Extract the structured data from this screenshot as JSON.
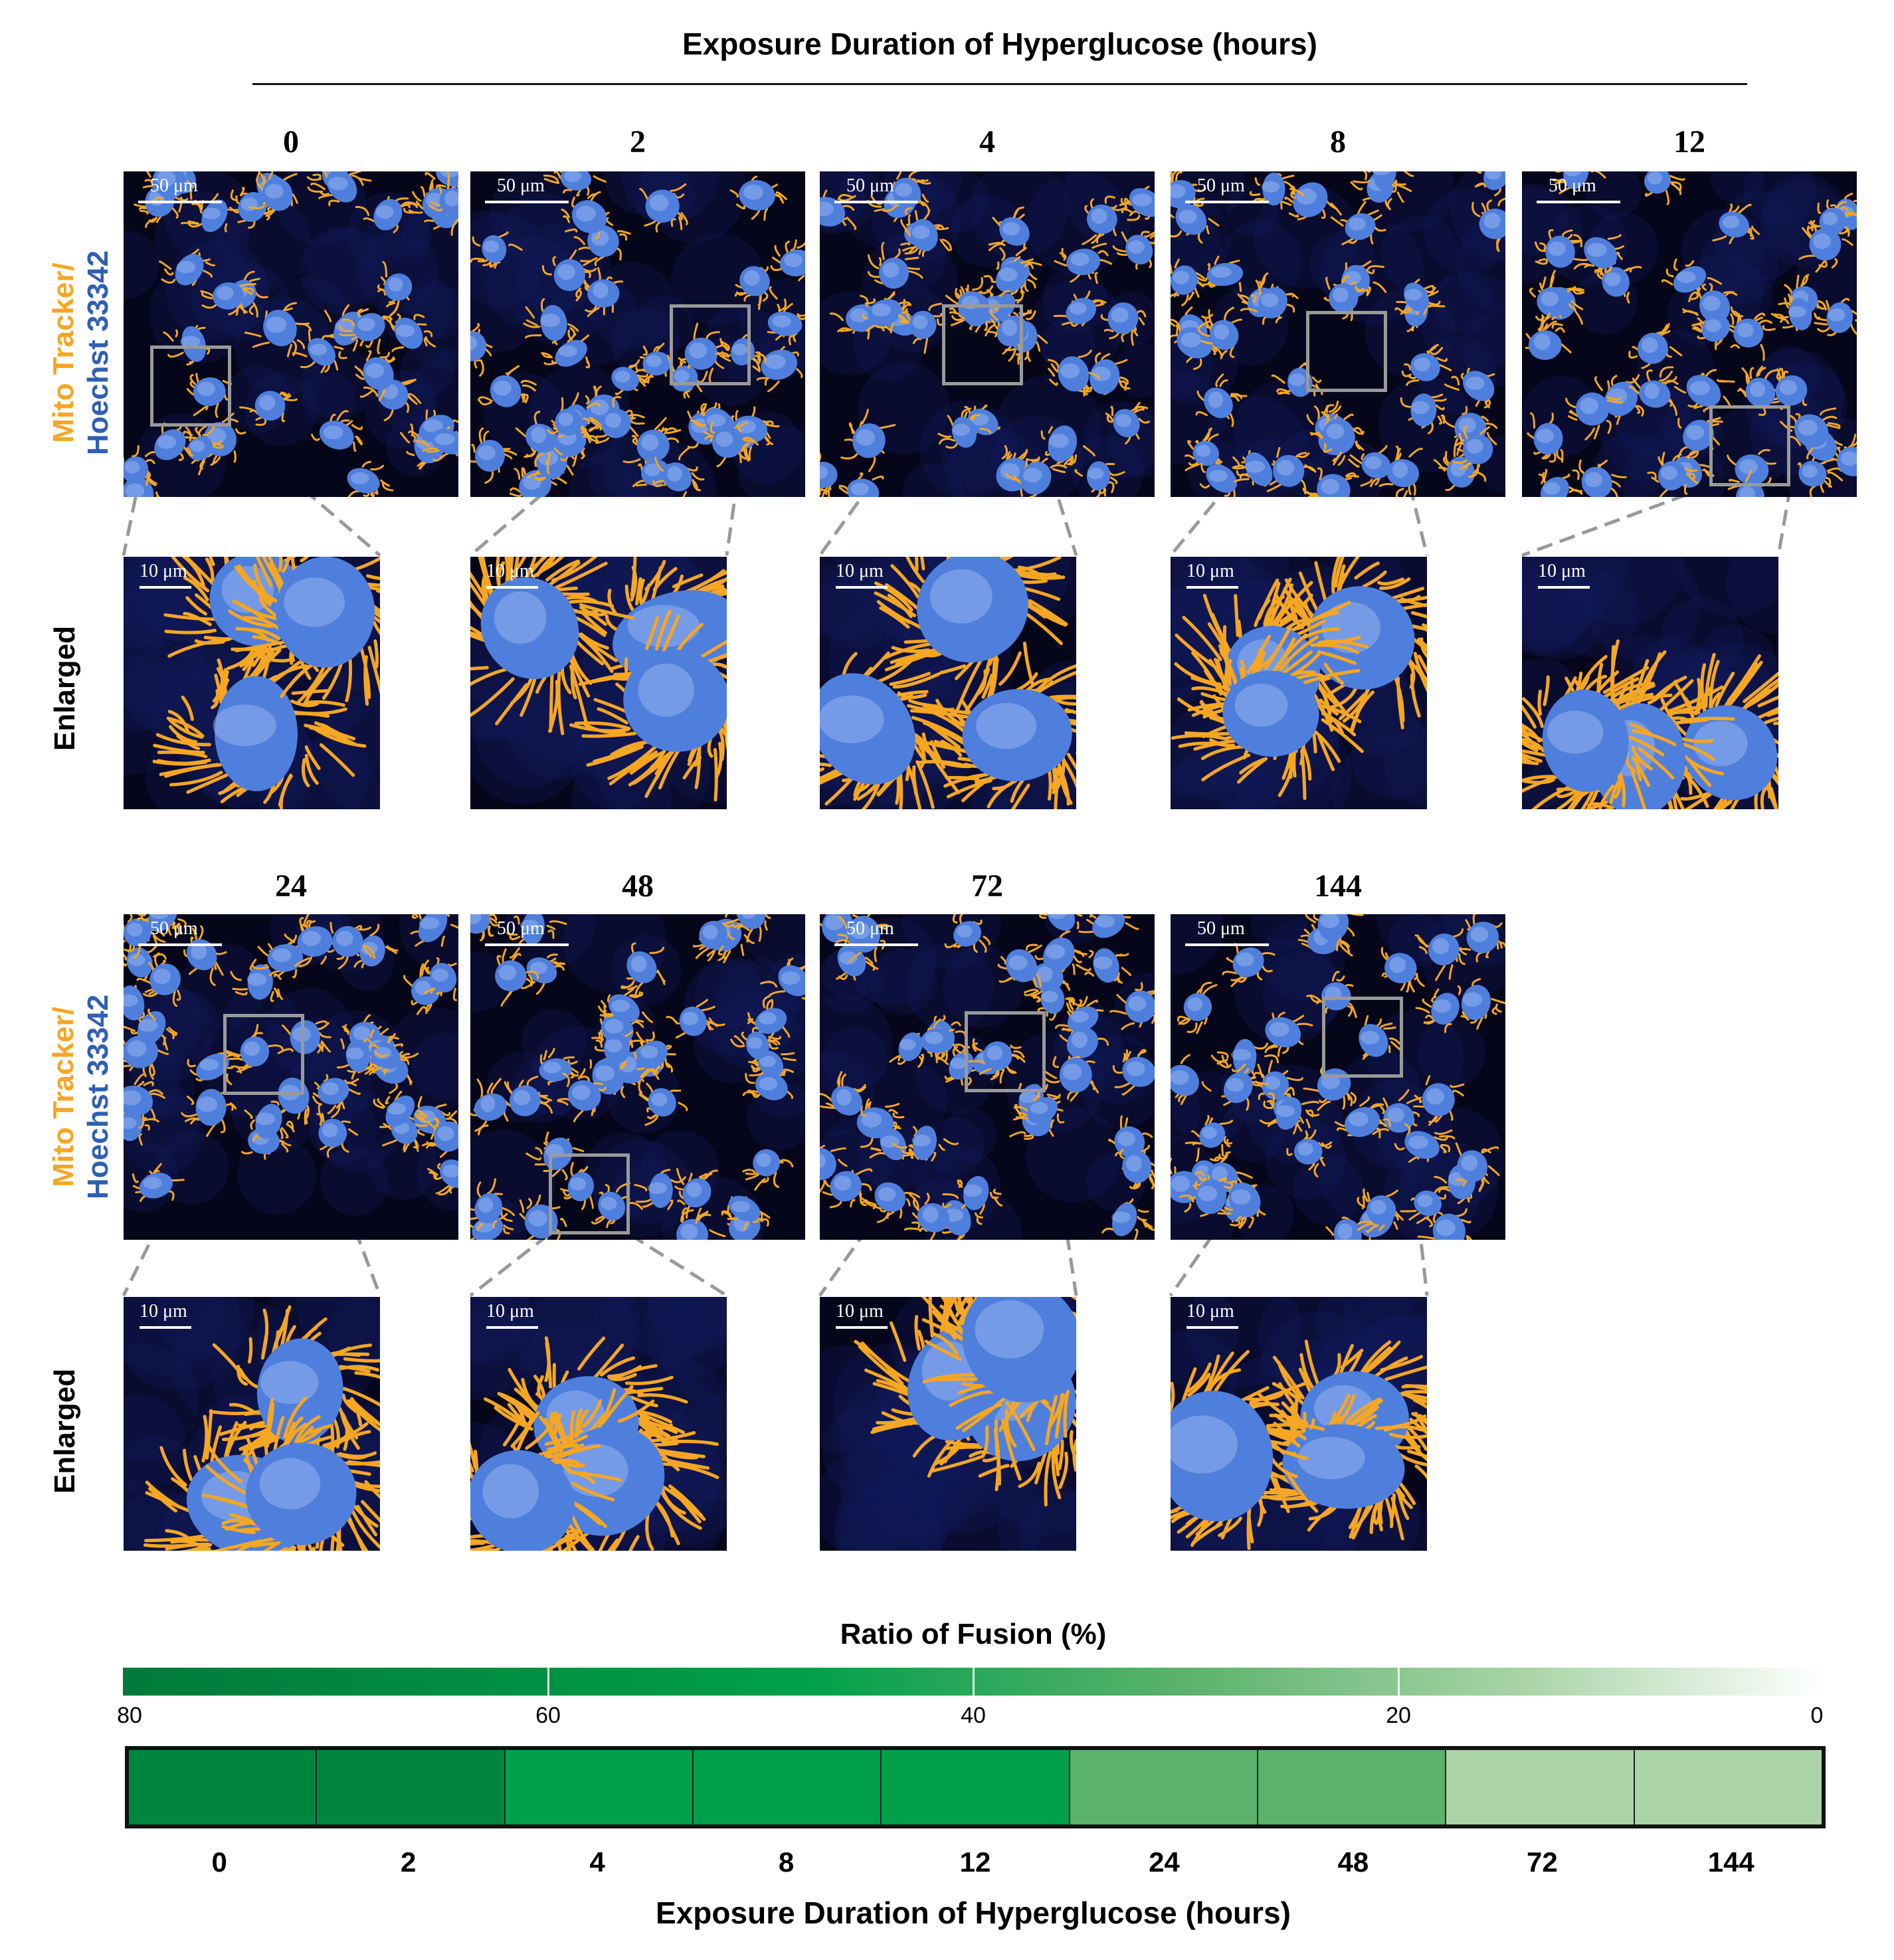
{
  "figure": {
    "top_title": "Exposure Duration of Hyperglucose (hours)",
    "row_labels": {
      "stain_line1": "Mito Tracker/",
      "stain_line2": "Hoechst 33342",
      "enlarged": "Enlarged"
    },
    "scale_labels": {
      "main": "50 μm",
      "enlarged": "10 μm"
    },
    "colors": {
      "mito": "#f5a623",
      "nucleus": "#4f7fdc",
      "stain_label_orange": "#f5a623",
      "stain_label_blue": "#2f5fb5",
      "roi_box": "#9a9a9a"
    },
    "hours": [
      "0",
      "2",
      "4",
      "8",
      "12",
      "24",
      "48",
      "72",
      "144"
    ]
  },
  "chart_data": {
    "type": "heatmap",
    "title": "Ratio of Fusion (%)",
    "xlabel": "Exposure Duration of Hyperglucose (hours)",
    "categories": [
      "0",
      "2",
      "4",
      "8",
      "12",
      "24",
      "48",
      "72",
      "144"
    ],
    "colorbar": {
      "range": [
        80,
        0
      ],
      "ticks": [
        "80",
        "60",
        "40",
        "20",
        "0"
      ],
      "colors": [
        "#007a3a",
        "#00a04a",
        "#5ab26b",
        "#a7d3a5",
        "#ffffff"
      ]
    },
    "cell_colors": [
      "#00863f",
      "#00863f",
      "#00a04a",
      "#00a04a",
      "#00a04a",
      "#5ab26b",
      "#5ab26b",
      "#abd4a6",
      "#abd4a6"
    ]
  }
}
